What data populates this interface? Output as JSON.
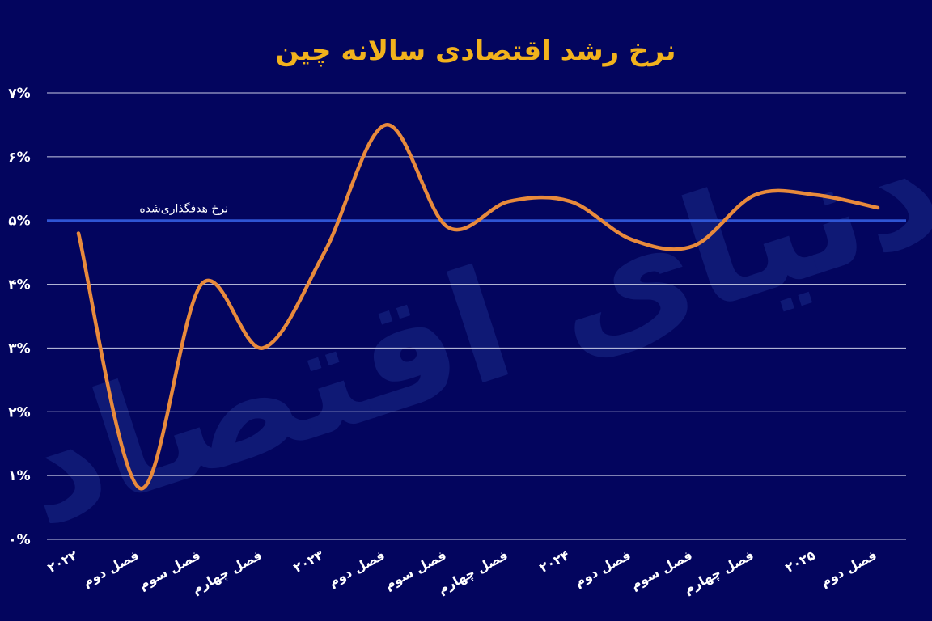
{
  "chart_data": {
    "type": "line",
    "title": "نرخ رشد اقتصادی سالانه چین",
    "y_ticks": [
      "۰%",
      "۱%",
      "۲%",
      "۳%",
      "۴%",
      "۵%",
      "۶%",
      "۷%"
    ],
    "ylim": [
      0,
      7
    ],
    "grid": true,
    "categories": [
      "۲۰۲۲",
      "فصل دوم",
      "فصل سوم",
      "فصل چهارم",
      "۲۰۲۳",
      "فصل دوم",
      "فصل سوم",
      "فصل چهارم",
      "۲۰۲۴",
      "فصل دوم",
      "فصل سوم",
      "فصل چهارم",
      "۲۰۲۵",
      "فصل دوم"
    ],
    "series": [
      {
        "name": "",
        "values": [
          4.8,
          0.8,
          4.0,
          3.0,
          4.5,
          6.5,
          4.9,
          5.3,
          5.3,
          4.7,
          4.6,
          5.4,
          5.4,
          5.2
        ]
      }
    ],
    "target": {
      "value": 5.0,
      "label": "نرخ هدفگذاری‌شده"
    },
    "watermark": "دنیای اقتصاد",
    "colors": {
      "background": "#03055e",
      "line": "#e88a3c",
      "target": "#2f55d4",
      "grid": "#c9cce6",
      "title": "#f2b21c",
      "text": "#ffffff"
    }
  }
}
